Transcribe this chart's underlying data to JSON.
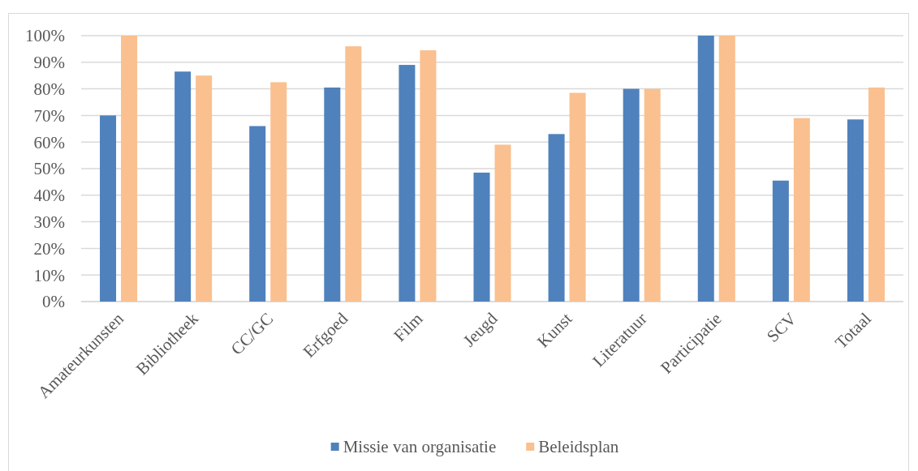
{
  "chart_data": {
    "type": "bar",
    "categories": [
      "Amateurkunsten",
      "Bibliotheek",
      "CC/GC",
      "Erfgoed",
      "Film",
      "Jeugd",
      "Kunst",
      "Literatuur",
      "Participatie",
      "SCV",
      "Totaal"
    ],
    "series": [
      {
        "name": "Missie van organisatie",
        "color": "#4f81bd",
        "values": [
          70,
          86.5,
          66,
          80.5,
          89,
          48.5,
          63,
          80,
          100,
          45.5,
          68.5
        ]
      },
      {
        "name": "Beleidsplan",
        "color": "#fac090",
        "values": [
          100,
          85,
          82.5,
          96,
          94.5,
          59,
          78.5,
          80,
          100,
          69,
          80.5
        ]
      }
    ],
    "ylim": [
      0,
      100
    ],
    "yticks": [
      {
        "value": 0,
        "label": "0%"
      },
      {
        "value": 10,
        "label": "10%"
      },
      {
        "value": 20,
        "label": "20%"
      },
      {
        "value": 30,
        "label": "30%"
      },
      {
        "value": 40,
        "label": "40%"
      },
      {
        "value": 50,
        "label": "50%"
      },
      {
        "value": 60,
        "label": "60%"
      },
      {
        "value": 70,
        "label": "70%"
      },
      {
        "value": 80,
        "label": "80%"
      },
      {
        "value": 90,
        "label": "90%"
      },
      {
        "value": 100,
        "label": "100%"
      }
    ],
    "grid": "y",
    "legend": "bottom"
  }
}
